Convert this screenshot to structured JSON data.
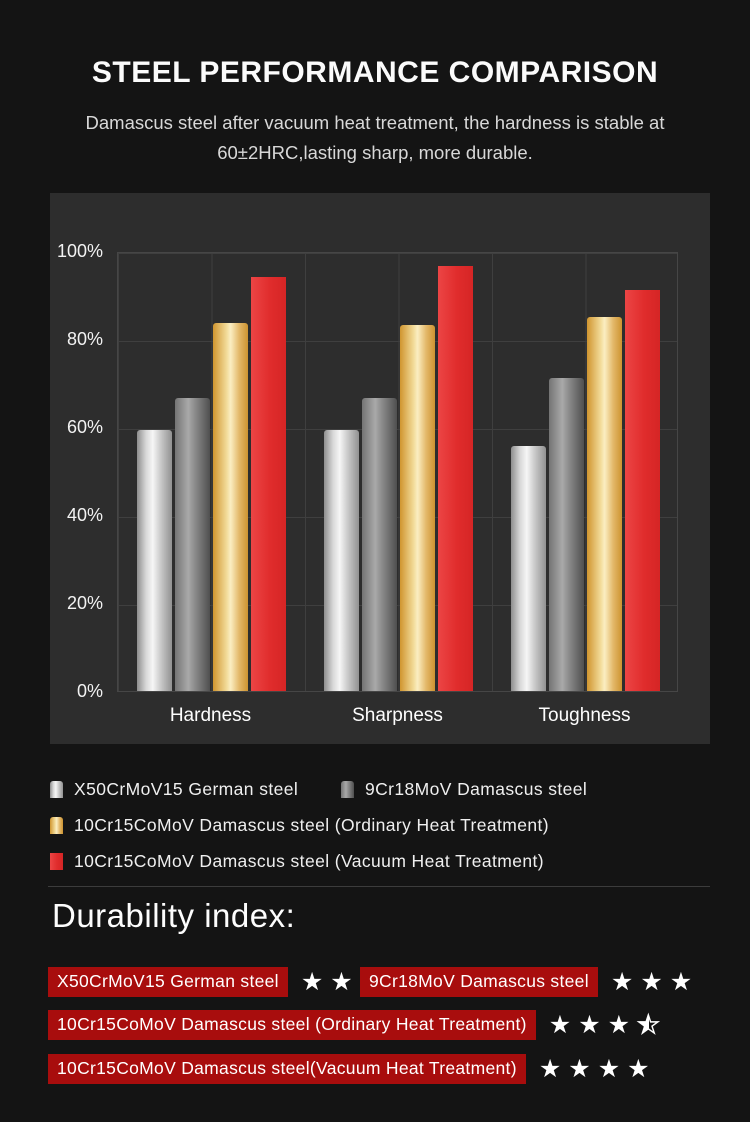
{
  "header": {
    "title": "STEEL PERFORMANCE COMPARISON",
    "subtitle_line1": "Damascus steel after vacuum heat treatment, the hardness is stable at",
    "subtitle_line2": "60±2HRC,lasting sharp, more durable."
  },
  "chart_data": {
    "type": "bar",
    "title": "Steel performance comparison",
    "categories": [
      "Hardness",
      "Sharpness",
      "Toughness"
    ],
    "series": [
      {
        "name": "X50CrMoV15 German steel",
        "style": "silver",
        "values": [
          59.5,
          59.5,
          56
        ]
      },
      {
        "name": "9Cr18MoV Damascus steel",
        "style": "gray",
        "values": [
          67,
          67,
          71.5
        ]
      },
      {
        "name": "10Cr15CoMoV Damascus steel  (Ordinary Heat Treatment)",
        "style": "gold",
        "values": [
          84,
          83.5,
          85.5
        ]
      },
      {
        "name": "10Cr15CoMoV Damascus steel (Vacuum Heat Treatment)",
        "style": "red",
        "values": [
          94.5,
          97,
          91.5
        ]
      }
    ],
    "ylabel": "",
    "xlabel": "",
    "ylim": [
      0,
      100
    ],
    "y_ticks": [
      "100%",
      "80%",
      "60%",
      "40%",
      "20%",
      "0%"
    ],
    "grid": true,
    "legend_position": "below"
  },
  "durability": {
    "heading": "Durability index:",
    "rows": [
      {
        "label": "X50CrMoV15 German steel",
        "stars": 2
      },
      {
        "label": "9Cr18MoV Damascus steel",
        "stars": 3
      },
      {
        "label": "10Cr15CoMoV Damascus steel  (Ordinary Heat Treatment)",
        "stars": 3.5
      },
      {
        "label": "10Cr15CoMoV Damascus steel(Vacuum Heat Treatment)",
        "stars": 4
      }
    ]
  },
  "colors": {
    "page_bg": "#141414",
    "panel_bg": "#2d2d2d",
    "grid_line": "#3f3f3f",
    "bar_silver": "#d9d9d9",
    "bar_gray": "#8a8a8a",
    "bar_gold": "#e8c06a",
    "bar_red": "#e02c2c",
    "durability_label_bg": "#a80d0d",
    "star_color": "#ffffff"
  }
}
